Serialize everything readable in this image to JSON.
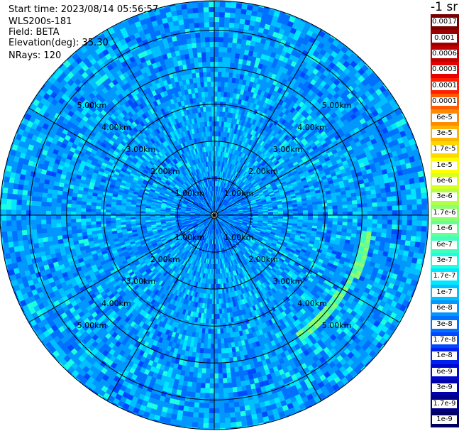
{
  "header": {
    "start_time": "Start time: 2023/08/14 05:56:57",
    "instrument": "WLS200s-181",
    "field": "Field: BETA",
    "elevation": "Elevation(deg): 35.30",
    "nrays": "NRays: 120"
  },
  "legend": {
    "unit_title": "-1 sr",
    "entries": [
      {
        "label": "0.0017",
        "color": "#7a0000"
      },
      {
        "label": "0.001",
        "color": "#9c0000"
      },
      {
        "label": "0.0006",
        "color": "#c00000"
      },
      {
        "label": "0.0003",
        "color": "#e60000"
      },
      {
        "label": "0.00017",
        "color": "#ff1e00"
      },
      {
        "label": "0.0001",
        "color": "#ff5a00"
      },
      {
        "label": "6e-5",
        "color": "#ff8c00"
      },
      {
        "label": "3e-5",
        "color": "#ffb400"
      },
      {
        "label": "1.7e-5",
        "color": "#ffd800"
      },
      {
        "label": "1e-5",
        "color": "#ffff00"
      },
      {
        "label": "6e-6",
        "color": "#d8ff22"
      },
      {
        "label": "3e-6",
        "color": "#b4ff46"
      },
      {
        "label": "1.7e-6",
        "color": "#8cff6e"
      },
      {
        "label": "1e-6",
        "color": "#64ff96"
      },
      {
        "label": "6e-7",
        "color": "#40ffbc"
      },
      {
        "label": "3e-7",
        "color": "#1cffe0"
      },
      {
        "label": "1.7e-7",
        "color": "#00e8ff"
      },
      {
        "label": "1e-7",
        "color": "#00c0ff"
      },
      {
        "label": "6e-8",
        "color": "#0098ff"
      },
      {
        "label": "3e-8",
        "color": "#0070ff"
      },
      {
        "label": "1.7e-8",
        "color": "#0048ff"
      },
      {
        "label": "1e-8",
        "color": "#0020f0"
      },
      {
        "label": "6e-9",
        "color": "#0008d0"
      },
      {
        "label": "3e-9",
        "color": "#0000aa"
      },
      {
        "label": "1.7e-9",
        "color": "#000086"
      },
      {
        "label": "1e-9",
        "color": "#000060"
      }
    ]
  },
  "chart_data": {
    "type": "ppi",
    "field": "BETA",
    "elevation_deg": 35.3,
    "nrays": 120,
    "max_range_km": 5.8,
    "range_rings_km": [
      1.0,
      2.0,
      3.0,
      4.0,
      5.0
    ],
    "ring_label": "km",
    "ring_labels": [
      "1.00km",
      "2.00km",
      "3.00km",
      "4.00km",
      "5.00km"
    ],
    "spoke_angles_deg": [
      0,
      30,
      60,
      90,
      120,
      150,
      180,
      210,
      240,
      270,
      300,
      330
    ],
    "dominant_values": [
      "1.7e-8",
      "3e-8",
      "6e-8",
      "1e-7",
      "1.7e-7",
      "3e-7"
    ],
    "enhanced_arc": {
      "range_km": 4.1,
      "from_az_deg": 95,
      "to_az_deg": 145,
      "values": [
        "6e-7",
        "1e-6",
        "1.7e-6"
      ]
    },
    "grid": true
  }
}
